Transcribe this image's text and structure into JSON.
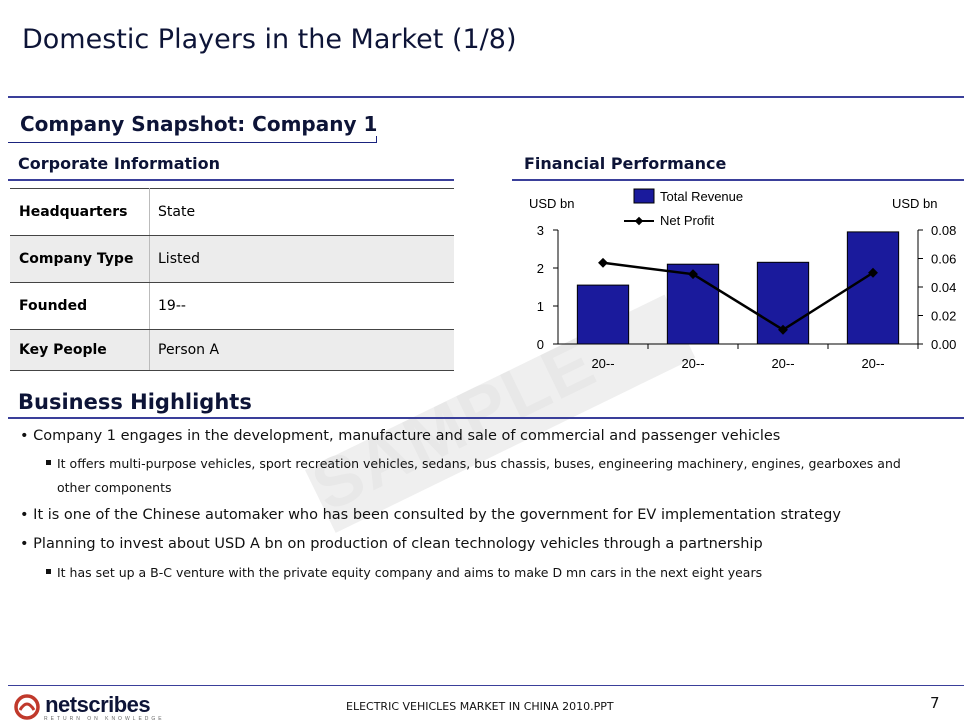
{
  "slide": {
    "title": "Domestic Players in the Market (1/8)",
    "subtitle": "Company Snapshot: Company 1",
    "watermark": "SAMPLE"
  },
  "corporate": {
    "heading": "Corporate Information",
    "rows": [
      {
        "key": "Headquarters",
        "value": "State"
      },
      {
        "key": "Company Type",
        "value": "Listed"
      },
      {
        "key": "Founded",
        "value": "19--"
      },
      {
        "key": "Key People",
        "value": "Person A"
      }
    ]
  },
  "financial": {
    "heading": "Financial Performance"
  },
  "chart_data": {
    "type": "bar",
    "categories": [
      "20--",
      "20--",
      "20--",
      "20--"
    ],
    "series": [
      {
        "name": "Total Revenue",
        "type": "bar",
        "axis": "left",
        "values": [
          1.55,
          2.1,
          2.15,
          2.95
        ],
        "color": "#1a1a9c"
      },
      {
        "name": "Net Profit",
        "type": "line",
        "axis": "right",
        "values": [
          0.057,
          0.049,
          0.01,
          0.05
        ],
        "color": "#000000"
      }
    ],
    "ylabel": "USD bn",
    "ylabel_right": "USD bn",
    "ylim": [
      0,
      3
    ],
    "yticks": [
      "0",
      "1",
      "2",
      "3"
    ],
    "ylim_right": [
      0,
      0.08
    ],
    "yticks_right": [
      "0.00",
      "0.02",
      "0.04",
      "0.06",
      "0.08"
    ],
    "legend_position": "top-center",
    "grid": false
  },
  "highlights": {
    "heading": "Business Highlights",
    "items": [
      {
        "level": 1,
        "text": "Company 1 engages in the development, manufacture and sale of commercial and passenger vehicles"
      },
      {
        "level": 2,
        "text": "It offers multi-purpose vehicles, sport recreation vehicles, sedans, bus chassis, buses, engineering machinery, engines, gearboxes and"
      },
      {
        "level": 2,
        "cont": true,
        "text": "other components"
      },
      {
        "level": 1,
        "text": "It is one of the Chinese automaker who has been consulted by the government for EV implementation strategy"
      },
      {
        "level": 1,
        "text": "Planning to invest about USD A bn on production of clean technology vehicles through a partnership"
      },
      {
        "level": 2,
        "text": "It has set up a B-C venture with the private equity company and aims to make D mn cars in the next eight years"
      }
    ]
  },
  "footer": {
    "logo": "netscribes",
    "logo_tagline": "RETURN ON KNOWLEDGE",
    "document": "ELECTRIC VEHICLES MARKET IN CHINA 2010.PPT",
    "page": "7"
  },
  "colors": {
    "accent": "#3a3f9a",
    "bar": "#1a1a9c",
    "logo_red": "#c0392b"
  }
}
